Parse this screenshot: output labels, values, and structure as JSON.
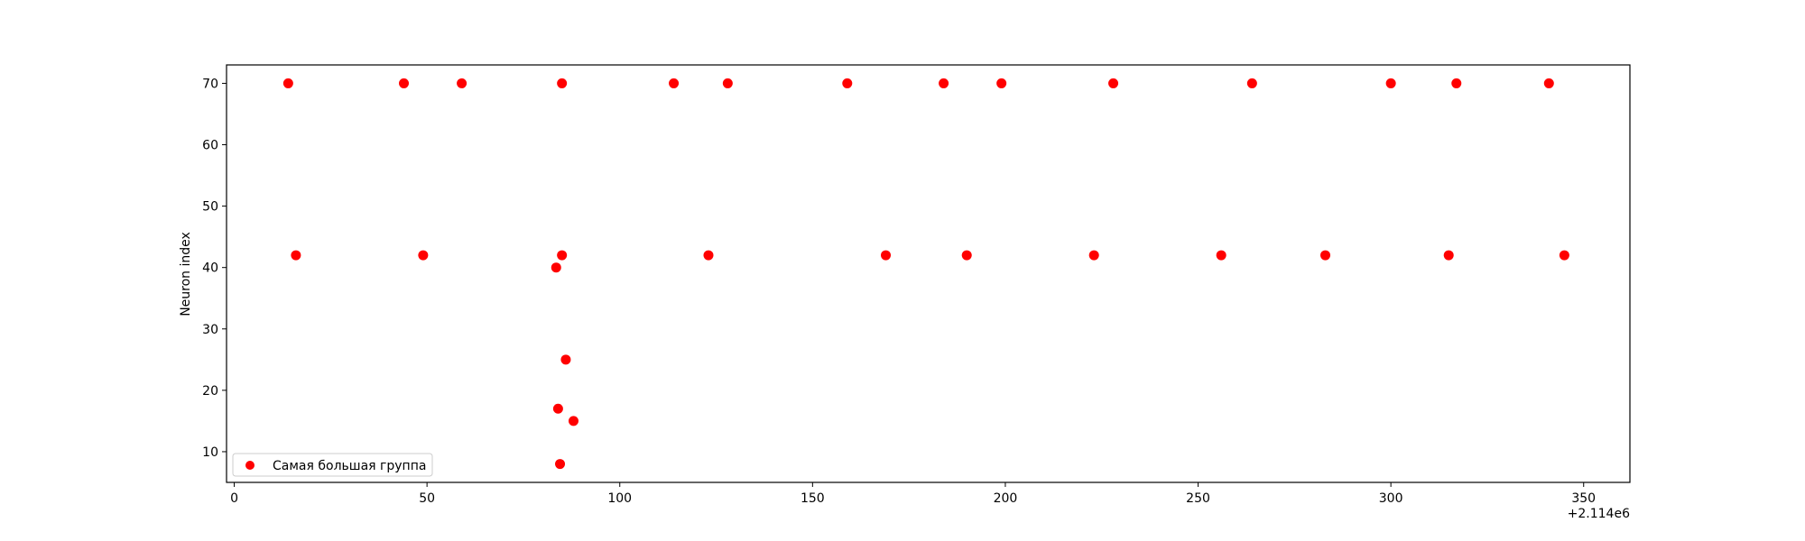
{
  "chart_data": {
    "type": "scatter",
    "title": "",
    "xlabel": "",
    "ylabel": "Neuron index",
    "x_offset_label": "+2.114e6",
    "xlim": [
      -2,
      362
    ],
    "ylim": [
      5,
      73
    ],
    "xticks": [
      0,
      50,
      100,
      150,
      200,
      250,
      300,
      350
    ],
    "yticks": [
      10,
      20,
      30,
      40,
      50,
      60,
      70
    ],
    "grid": false,
    "legend_position": "lower-left",
    "series": [
      {
        "name": "Самая большая группа",
        "color": "#ff0000",
        "points": [
          [
            14,
            70
          ],
          [
            44,
            70
          ],
          [
            59,
            70
          ],
          [
            85,
            70
          ],
          [
            114,
            70
          ],
          [
            128,
            70
          ],
          [
            159,
            70
          ],
          [
            184,
            70
          ],
          [
            199,
            70
          ],
          [
            228,
            70
          ],
          [
            264,
            70
          ],
          [
            300,
            70
          ],
          [
            317,
            70
          ],
          [
            341,
            70
          ],
          [
            16,
            42
          ],
          [
            49,
            42
          ],
          [
            85,
            42
          ],
          [
            123,
            42
          ],
          [
            169,
            42
          ],
          [
            190,
            42
          ],
          [
            223,
            42
          ],
          [
            256,
            42
          ],
          [
            283,
            42
          ],
          [
            315,
            42
          ],
          [
            345,
            42
          ],
          [
            83.5,
            40
          ],
          [
            86,
            25
          ],
          [
            84,
            17
          ],
          [
            88,
            15
          ],
          [
            84.5,
            8
          ]
        ]
      }
    ]
  }
}
